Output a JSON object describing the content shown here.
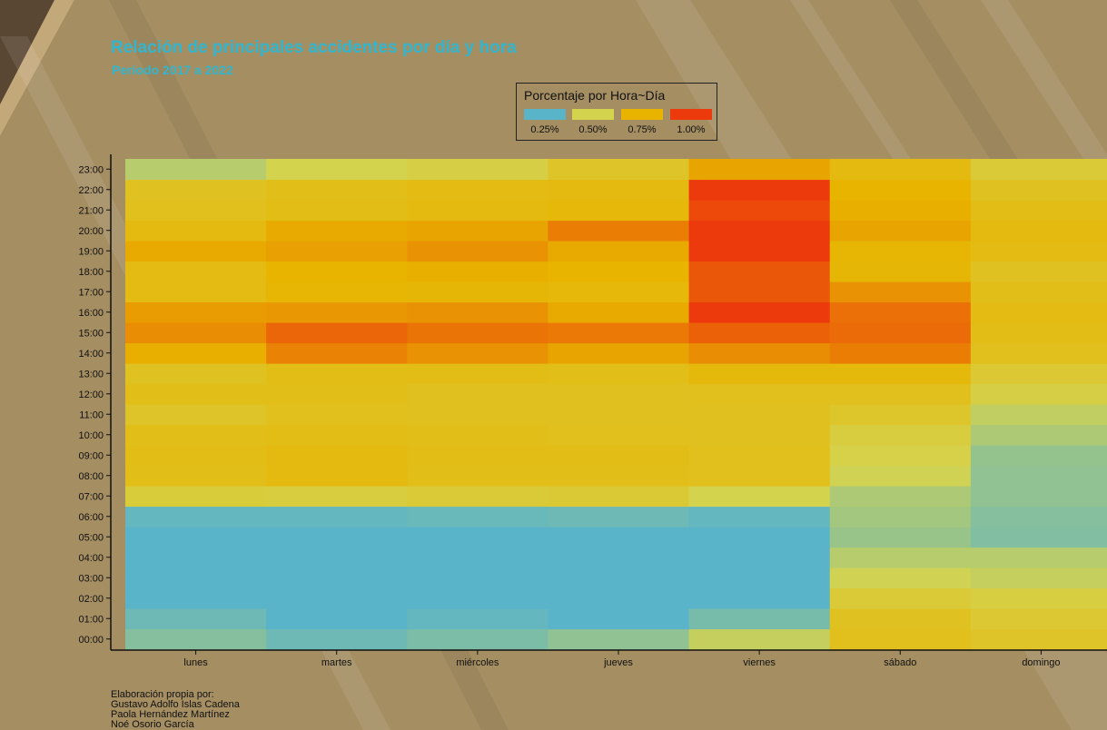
{
  "title": "Relación de principales accidentes por día y hora",
  "subtitle": "Periodo 2017 a 2022",
  "legend": {
    "title": "Porcentaje por Hora~Día",
    "items": [
      {
        "label": "0.25%",
        "color": "#5ab4c9"
      },
      {
        "label": "0.50%",
        "color": "#d4d34e"
      },
      {
        "label": "0.75%",
        "color": "#e8b400"
      },
      {
        "label": "1.00%",
        "color": "#ec3a0c"
      }
    ]
  },
  "credits": {
    "lines": [
      "Elaboración propia por:",
      "Gustavo Adolfo Islas Cadena",
      "Paola Hernández Martínez",
      "Noé Osorio García"
    ]
  },
  "chart_data": {
    "type": "heatmap",
    "x": [
      "lunes",
      "martes",
      "miércoles",
      "jueves",
      "viernes",
      "sábado",
      "domingo"
    ],
    "y": [
      "00:00",
      "01:00",
      "02:00",
      "03:00",
      "04:00",
      "05:00",
      "06:00",
      "07:00",
      "08:00",
      "09:00",
      "10:00",
      "11:00",
      "12:00",
      "13:00",
      "14:00",
      "15:00",
      "16:00",
      "17:00",
      "18:00",
      "19:00",
      "20:00",
      "21:00",
      "22:00",
      "23:00"
    ],
    "value_unit": "%",
    "color_scale": {
      "stops": [
        0.25,
        0.5,
        0.75,
        1.0
      ],
      "colors": [
        "#5ab4c9",
        "#d4d34e",
        "#e8b400",
        "#ec3a0c"
      ]
    },
    "values": [
      [
        0.34,
        0.29,
        0.32,
        0.36,
        0.47,
        0.66,
        0.62
      ],
      [
        0.29,
        0.23,
        0.27,
        0.24,
        0.31,
        0.64,
        0.59
      ],
      [
        0.21,
        0.18,
        0.21,
        0.2,
        0.24,
        0.57,
        0.54
      ],
      [
        0.17,
        0.16,
        0.17,
        0.17,
        0.2,
        0.49,
        0.47
      ],
      [
        0.17,
        0.17,
        0.17,
        0.17,
        0.21,
        0.44,
        0.44
      ],
      [
        0.2,
        0.2,
        0.2,
        0.2,
        0.2,
        0.38,
        0.33
      ],
      [
        0.27,
        0.27,
        0.28,
        0.29,
        0.27,
        0.4,
        0.34
      ],
      [
        0.56,
        0.55,
        0.57,
        0.58,
        0.5,
        0.42,
        0.36
      ],
      [
        0.67,
        0.7,
        0.67,
        0.67,
        0.66,
        0.49,
        0.36
      ],
      [
        0.68,
        0.7,
        0.68,
        0.68,
        0.66,
        0.52,
        0.37
      ],
      [
        0.67,
        0.68,
        0.67,
        0.66,
        0.65,
        0.55,
        0.42
      ],
      [
        0.62,
        0.66,
        0.65,
        0.65,
        0.65,
        0.61,
        0.46
      ],
      [
        0.67,
        0.67,
        0.65,
        0.65,
        0.66,
        0.66,
        0.53
      ],
      [
        0.64,
        0.68,
        0.68,
        0.67,
        0.71,
        0.71,
        0.59
      ],
      [
        0.76,
        0.85,
        0.82,
        0.78,
        0.83,
        0.86,
        0.66
      ],
      [
        0.83,
        0.91,
        0.88,
        0.87,
        0.92,
        0.9,
        0.68
      ],
      [
        0.8,
        0.81,
        0.82,
        0.77,
        1.0,
        0.89,
        0.69
      ],
      [
        0.69,
        0.74,
        0.73,
        0.72,
        0.94,
        0.82,
        0.67
      ],
      [
        0.69,
        0.75,
        0.76,
        0.75,
        0.94,
        0.73,
        0.64
      ],
      [
        0.77,
        0.79,
        0.82,
        0.77,
        1.0,
        0.74,
        0.69
      ],
      [
        0.7,
        0.77,
        0.78,
        0.86,
        1.0,
        0.78,
        0.7
      ],
      [
        0.66,
        0.68,
        0.7,
        0.72,
        0.97,
        0.76,
        0.68
      ],
      [
        0.64,
        0.67,
        0.69,
        0.7,
        1.0,
        0.75,
        0.64
      ],
      [
        0.44,
        0.5,
        0.53,
        0.62,
        0.78,
        0.7,
        0.57
      ]
    ]
  }
}
